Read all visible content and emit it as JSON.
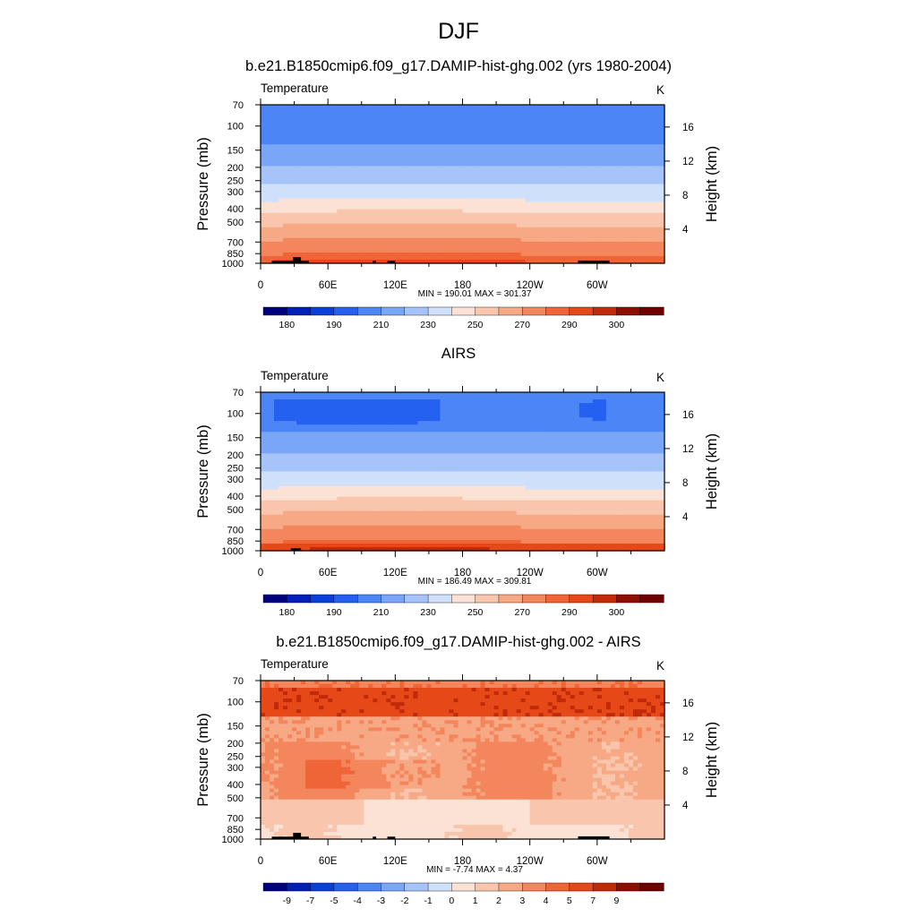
{
  "figure_title": "DJF",
  "chart_data": [
    {
      "type": "heatmap",
      "title": "b.e21.B1850cmip6.f09_g17.DAMIP-hist-ghg.002 (yrs 1980-2004)",
      "left_label": "Temperature",
      "right_label": "K",
      "ylabel": "Pressure (mb)",
      "ylabel_right": "Height (km)",
      "x_ticks": [
        "0",
        "60E",
        "120E",
        "180",
        "120W",
        "60W"
      ],
      "y_ticks": [
        "70",
        "100",
        "150",
        "200",
        "250",
        "300",
        "400",
        "500",
        "700",
        "850",
        "1000"
      ],
      "y_ticks_right": [
        "16",
        "12",
        "8",
        "4"
      ],
      "stats_text": "MIN = 190.01  MAX = 301.37",
      "colorbar_labels": [
        "180",
        "190",
        "210",
        "230",
        "250",
        "270",
        "290",
        "300"
      ],
      "min": 190.01,
      "max": 301.37
    },
    {
      "type": "heatmap",
      "title": "AIRS",
      "left_label": "Temperature",
      "right_label": "K",
      "ylabel": "Pressure (mb)",
      "ylabel_right": "Height (km)",
      "x_ticks": [
        "0",
        "60E",
        "120E",
        "180",
        "120W",
        "60W"
      ],
      "y_ticks": [
        "70",
        "100",
        "150",
        "200",
        "250",
        "300",
        "400",
        "500",
        "700",
        "850",
        "1000"
      ],
      "y_ticks_right": [
        "16",
        "12",
        "8",
        "4"
      ],
      "stats_text": "MIN = 186.49  MAX = 309.81",
      "colorbar_labels": [
        "180",
        "190",
        "210",
        "230",
        "250",
        "270",
        "290",
        "300"
      ],
      "min": 186.49,
      "max": 309.81
    },
    {
      "type": "heatmap",
      "title": "b.e21.B1850cmip6.f09_g17.DAMIP-hist-ghg.002 - AIRS",
      "left_label": "Temperature",
      "right_label": "K",
      "ylabel": "Pressure (mb)",
      "ylabel_right": "Height (km)",
      "x_ticks": [
        "0",
        "60E",
        "120E",
        "180",
        "120W",
        "60W"
      ],
      "y_ticks": [
        "70",
        "100",
        "150",
        "200",
        "250",
        "300",
        "400",
        "500",
        "700",
        "850",
        "1000"
      ],
      "y_ticks_right": [
        "16",
        "12",
        "8",
        "4"
      ],
      "stats_text": "MIN = -7.74  MAX =   4.37",
      "colorbar_labels": [
        "-9",
        "-7",
        "-5",
        "-4",
        "-3",
        "-2",
        "-1",
        "0",
        "1",
        "2",
        "3",
        "4",
        "5",
        "7",
        "9"
      ],
      "min": -7.74,
      "max": 4.37
    }
  ],
  "colors": {
    "palette": [
      "#00007f",
      "#0020b8",
      "#0a3fd8",
      "#2560f0",
      "#4c86f6",
      "#7aa6f8",
      "#a7c4fa",
      "#cfe0fb",
      "#fbe2d4",
      "#f9c6ad",
      "#f7a885",
      "#f4865d",
      "#f06538",
      "#e64818",
      "#c02a09",
      "#8f0e02",
      "#6e0000"
    ],
    "terrain": "#000000"
  }
}
